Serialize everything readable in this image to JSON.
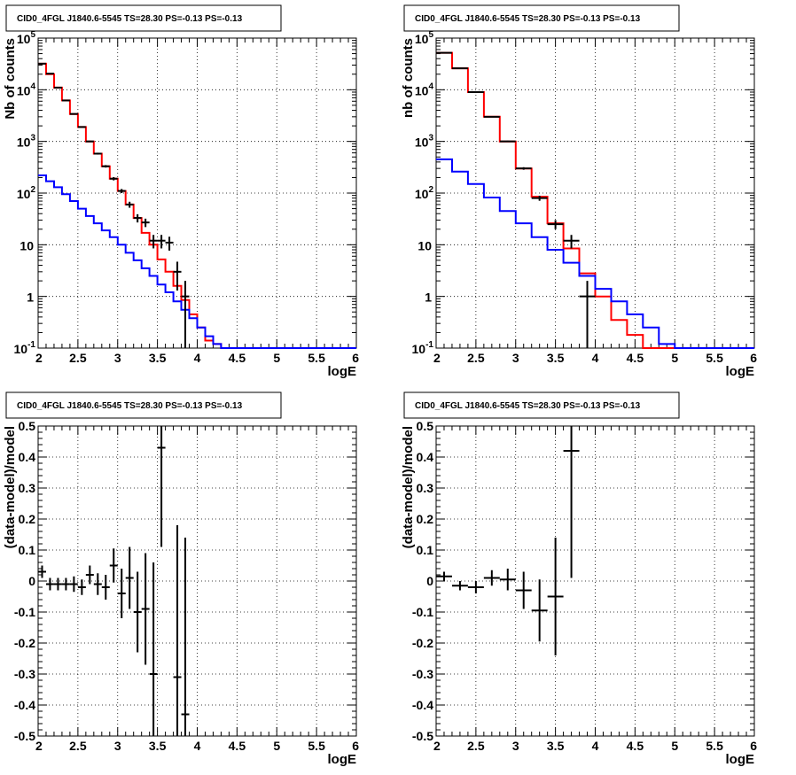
{
  "figure": {
    "pad_titles": [
      "CID0_4FGL J1840.6-5545 TS=28.30 PS=-0.13 PS=-0.13",
      "CID0_4FGL J1840.6-5545 TS=28.30 PS=-0.13 PS=-0.13",
      "CID0_4FGL J1840.6-5545 TS=28.30 PS=-0.13 PS=-0.13",
      "CID0_4FGL J1840.6-5545 TS=28.30 PS=-0.13 PS=-0.13"
    ],
    "colors": {
      "data": "#000000",
      "total_model": "#ff0000",
      "component_model": "#0000ff",
      "grid": "#000000"
    }
  },
  "chart_data": [
    {
      "type": "histogram",
      "title": "CID0_4FGL J1840.6-5545 TS=28.30 PS=-0.13 PS=-0.13",
      "xlabel": "logE",
      "ylabel": "Nb of counts",
      "xlim": [
        2,
        6
      ],
      "ylim": [
        0.1,
        100000
      ],
      "log_y": true,
      "grid": true,
      "xticks": [
        "2",
        "2.5",
        "3",
        "3.5",
        "4",
        "4.5",
        "5",
        "5.5",
        "6"
      ],
      "yticks": [
        "10^-1",
        "1",
        "10",
        "10^2",
        "10^3",
        "10^4",
        "10^5"
      ],
      "bin_edges": [
        2.0,
        2.1,
        2.2,
        2.3,
        2.4,
        2.5,
        2.6,
        2.7,
        2.8,
        2.9,
        3.0,
        3.1,
        3.2,
        3.3,
        3.4,
        3.5,
        3.6,
        3.7,
        3.8,
        3.9,
        4.0,
        4.1,
        4.2,
        4.3,
        4.4,
        4.5,
        4.6,
        4.7,
        4.8,
        4.9,
        5.0,
        5.1,
        5.2,
        5.3,
        5.4,
        5.5,
        5.6,
        5.7,
        5.8,
        5.9,
        6.0
      ],
      "series": [
        {
          "name": "",
          "color": "#ff0000",
          "values": [
            32000,
            20000,
            11000,
            6200,
            3400,
            1900,
            1000,
            580,
            330,
            190,
            110,
            60,
            33,
            17,
            10,
            5.2,
            3.0,
            1.6,
            0.85,
            0.45,
            0.25,
            0.14,
            0.12,
            0.1,
            0.1,
            0.1,
            0.1,
            0.1,
            0.1,
            0.1,
            0.1,
            0.1,
            0.1,
            0.1,
            0.1,
            0.1,
            0.1,
            0.1,
            0.1,
            0.1
          ]
        },
        {
          "name": "",
          "color": "#0000ff",
          "values": [
            220,
            170,
            130,
            95,
            70,
            50,
            36,
            26,
            19,
            14,
            10,
            7,
            5,
            3.5,
            2.5,
            1.7,
            1.2,
            0.8,
            0.55,
            0.38,
            0.25,
            0.17,
            0.12,
            0.1,
            0.1,
            0.1,
            0.1,
            0.1,
            0.1,
            0.1,
            0.1,
            0.1,
            0.1,
            0.1,
            0.1,
            0.1,
            0.1,
            0.1,
            0.1,
            0.1
          ]
        }
      ],
      "points": [
        {
          "x": 2.05,
          "y": 32000,
          "err": 180
        },
        {
          "x": 2.15,
          "y": 20500,
          "err": 140
        },
        {
          "x": 2.25,
          "y": 11000,
          "err": 105
        },
        {
          "x": 2.35,
          "y": 6200,
          "err": 80
        },
        {
          "x": 2.45,
          "y": 3400,
          "err": 58
        },
        {
          "x": 2.55,
          "y": 1900,
          "err": 44
        },
        {
          "x": 2.65,
          "y": 1000,
          "err": 32
        },
        {
          "x": 2.75,
          "y": 580,
          "err": 24
        },
        {
          "x": 2.85,
          "y": 330,
          "err": 18
        },
        {
          "x": 2.95,
          "y": 190,
          "err": 14
        },
        {
          "x": 3.05,
          "y": 110,
          "err": 10
        },
        {
          "x": 3.15,
          "y": 60,
          "err": 8
        },
        {
          "x": 3.25,
          "y": 33,
          "err": 6
        },
        {
          "x": 3.35,
          "y": 27,
          "err": 5
        },
        {
          "x": 3.45,
          "y": 12,
          "err": 3.5
        },
        {
          "x": 3.55,
          "y": 12,
          "err": 3.5
        },
        {
          "x": 3.65,
          "y": 11,
          "err": 3.3
        },
        {
          "x": 3.75,
          "y": 3,
          "err": 1.7
        },
        {
          "x": 3.85,
          "y": 1,
          "err": 1
        }
      ]
    },
    {
      "type": "histogram",
      "title": "CID0_4FGL J1840.6-5545 TS=28.30 PS=-0.13 PS=-0.13",
      "xlabel": "logE",
      "ylabel": "nb of counts",
      "xlim": [
        2,
        6
      ],
      "ylim": [
        0.1,
        100000
      ],
      "log_y": true,
      "grid": true,
      "xticks": [
        "2",
        "2.5",
        "3",
        "3.5",
        "4",
        "4.5",
        "5",
        "5.5",
        "6"
      ],
      "yticks": [
        "10^-1",
        "1",
        "10",
        "10^2",
        "10^3",
        "10^4",
        "10^5"
      ],
      "bin_edges": [
        2.0,
        2.2,
        2.4,
        2.6,
        2.8,
        3.0,
        3.2,
        3.4,
        3.6,
        3.8,
        4.0,
        4.2,
        4.4,
        4.6,
        4.8,
        5.0,
        5.2,
        5.4,
        5.6,
        5.8,
        6.0
      ],
      "series": [
        {
          "name": "",
          "color": "#ff0000",
          "values": [
            52000,
            26000,
            9000,
            3000,
            1000,
            300,
            85,
            26,
            8.5,
            2.8,
            1.0,
            0.35,
            0.18,
            0.1,
            0.1,
            0.1,
            0.1,
            0.1,
            0.1,
            0.1
          ]
        },
        {
          "name": "",
          "color": "#0000ff",
          "values": [
            450,
            260,
            150,
            82,
            45,
            26,
            14,
            8,
            4.5,
            2.5,
            1.4,
            0.8,
            0.45,
            0.25,
            0.12,
            0.1,
            0.1,
            0.1,
            0.1,
            0.1
          ]
        }
      ],
      "points": [
        {
          "x": 2.1,
          "y": 52000,
          "err": 230
        },
        {
          "x": 2.3,
          "y": 26000,
          "err": 160
        },
        {
          "x": 2.5,
          "y": 9000,
          "err": 95
        },
        {
          "x": 2.7,
          "y": 3000,
          "err": 55
        },
        {
          "x": 2.9,
          "y": 1000,
          "err": 32
        },
        {
          "x": 3.1,
          "y": 300,
          "err": 17
        },
        {
          "x": 3.3,
          "y": 80,
          "err": 9
        },
        {
          "x": 3.5,
          "y": 25,
          "err": 5
        },
        {
          "x": 3.7,
          "y": 12,
          "err": 3.5
        },
        {
          "x": 3.9,
          "y": 1,
          "err": 1
        }
      ]
    },
    {
      "type": "scatter",
      "title": "CID0_4FGL J1840.6-5545 TS=28.30 PS=-0.13 PS=-0.13",
      "xlabel": "logE",
      "ylabel": "(data-model)/model",
      "xlim": [
        2,
        6
      ],
      "ylim": [
        -0.5,
        0.5
      ],
      "grid": true,
      "xticks": [
        "2",
        "2.5",
        "3",
        "3.5",
        "4",
        "4.5",
        "5",
        "5.5",
        "6"
      ],
      "yticks": [
        "-0.5",
        "-0.4",
        "-0.3",
        "-0.2",
        "-0.1",
        "0",
        "0.1",
        "0.2",
        "0.3",
        "0.4",
        "0.5"
      ],
      "bin_halfwidth": 0.05,
      "points": [
        {
          "x": 2.05,
          "y": 0.03,
          "err": 0.02
        },
        {
          "x": 2.15,
          "y": -0.01,
          "err": 0.02
        },
        {
          "x": 2.25,
          "y": -0.01,
          "err": 0.02
        },
        {
          "x": 2.35,
          "y": -0.01,
          "err": 0.02
        },
        {
          "x": 2.45,
          "y": -0.01,
          "err": 0.025
        },
        {
          "x": 2.55,
          "y": -0.02,
          "err": 0.025
        },
        {
          "x": 2.65,
          "y": 0.02,
          "err": 0.03
        },
        {
          "x": 2.75,
          "y": -0.01,
          "err": 0.035
        },
        {
          "x": 2.85,
          "y": -0.02,
          "err": 0.04
        },
        {
          "x": 2.95,
          "y": 0.05,
          "err": 0.055
        },
        {
          "x": 3.05,
          "y": -0.04,
          "err": 0.08
        },
        {
          "x": 3.15,
          "y": 0.01,
          "err": 0.1
        },
        {
          "x": 3.25,
          "y": -0.1,
          "err": 0.13
        },
        {
          "x": 3.35,
          "y": -0.09,
          "err": 0.18
        },
        {
          "x": 3.45,
          "y": -0.3,
          "err": 0.36
        },
        {
          "x": 3.55,
          "y": 0.43,
          "err": 0.32
        },
        {
          "x": 3.75,
          "y": -0.31,
          "err": 0.49
        },
        {
          "x": 3.85,
          "y": -0.43,
          "err": 0.57
        }
      ]
    },
    {
      "type": "scatter",
      "title": "CID0_4FGL J1840.6-5545 TS=28.30 PS=-0.13 PS=-0.13",
      "xlabel": "logE",
      "ylabel": "(data-model)/model",
      "xlim": [
        2,
        6
      ],
      "ylim": [
        -0.5,
        0.5
      ],
      "grid": true,
      "xticks": [
        "2",
        "2.5",
        "3",
        "3.5",
        "4",
        "4.5",
        "5",
        "5.5",
        "6"
      ],
      "yticks": [
        "-0.5",
        "-0.4",
        "-0.3",
        "-0.2",
        "-0.1",
        "0",
        "0.1",
        "0.2",
        "0.3",
        "0.4",
        "0.5"
      ],
      "bin_halfwidth": 0.1,
      "points": [
        {
          "x": 2.1,
          "y": 0.015,
          "err": 0.015
        },
        {
          "x": 2.3,
          "y": -0.015,
          "err": 0.015
        },
        {
          "x": 2.5,
          "y": -0.02,
          "err": 0.02
        },
        {
          "x": 2.7,
          "y": 0.01,
          "err": 0.025
        },
        {
          "x": 2.9,
          "y": 0.005,
          "err": 0.035
        },
        {
          "x": 3.1,
          "y": -0.03,
          "err": 0.06
        },
        {
          "x": 3.3,
          "y": -0.095,
          "err": 0.1
        },
        {
          "x": 3.5,
          "y": -0.05,
          "err": 0.19
        },
        {
          "x": 3.7,
          "y": 0.42,
          "err": 0.41
        }
      ]
    }
  ]
}
